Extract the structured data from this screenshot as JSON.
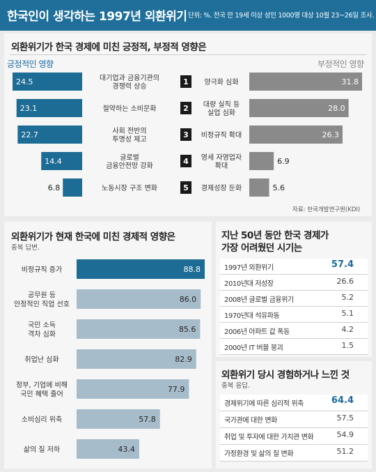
{
  "header": {
    "title": "한국인이 생각하는 1997년 외환위기",
    "note": "단위: %. 전국 만 19세 이상 성인 1000명 대상 10월 23~26일 조사."
  },
  "colors": {
    "header_bg": "#1f6f9a",
    "positive_bar": "#1d6c95",
    "negative_bar": "#8a8a8a",
    "impact_first_bar": "#1d6c95",
    "impact_other_bar": "#a7bccb",
    "highlight_value": "#1a6aa0"
  },
  "section1": {
    "title": "외환위기가 한국 경제에 미친 긍정적, 부정적 영향은",
    "positive_heading": "긍정적인 영향",
    "negative_heading": "부정적인 영향",
    "source": "자료: 한국개발연구원(KDI)"
  },
  "section2": {
    "title": "외환위기가 현재 한국에 미친 경제적 영향은",
    "note": "중복 답변."
  },
  "section3": {
    "title_line1": "지난 50년 동안 한국 경제가",
    "title_line2": "가장 어려웠던 시기는"
  },
  "section4": {
    "title": "외환위기 당시 경험하거나 느낀 것",
    "note": "중복 응답."
  },
  "chart_data": [
    {
      "type": "bar",
      "title": "외환위기가 한국 경제에 미친 긍정적 영향",
      "categories": [
        "대기업과 금융기관의 경쟁력 상승",
        "절약하는 소비문화",
        "사회 전반의 투명성 제고",
        "글로벌 금융안전망 강화",
        "노동시장 구조 변화"
      ],
      "label_lines": [
        [
          "대기업과 금융기관의",
          "경쟁력 상승"
        ],
        [
          "절약하는 소비문화"
        ],
        [
          "사회 전반의",
          "투명성 제고"
        ],
        [
          "글로벌",
          "금융안전망 강화"
        ],
        [
          "노동시장 구조 변화"
        ]
      ],
      "ranks": [
        "1",
        "2",
        "3",
        "4",
        "5"
      ],
      "values": [
        24.5,
        23.1,
        22.7,
        14.4,
        6.8
      ],
      "value_labels": [
        "24.5",
        "23.1",
        "22.7",
        "14.4",
        "6.8"
      ]
    },
    {
      "type": "bar",
      "title": "외환위기가 한국 경제에 미친 부정적 영향",
      "categories": [
        "양극화 심화",
        "대량 실직 등 실업 심화",
        "비정규직 확대",
        "영세 자영업자 확대",
        "경제성장 둔화"
      ],
      "label_lines": [
        [
          "양극화 심화"
        ],
        [
          "대량 실직 등",
          "실업 심화"
        ],
        [
          "비정규직 확대"
        ],
        [
          "영세 자영업자",
          "확대"
        ],
        [
          "경제성장 둔화"
        ]
      ],
      "values": [
        31.8,
        28.0,
        26.3,
        6.9,
        5.6
      ],
      "value_labels": [
        "31.8",
        "28.0",
        "26.3",
        "6.9",
        "5.6"
      ]
    },
    {
      "type": "bar",
      "title": "외환위기가 현재 한국에 미친 경제적 영향은",
      "categories": [
        "비정규직 증가",
        "공무원 등 안정적인 직업 선호",
        "국민 소득 격차 심화",
        "취업난 심화",
        "정부, 기업에 비해 국민 혜택 줄어",
        "소비심리 위축",
        "삶의 질 저하"
      ],
      "label_lines": [
        [
          "비정규직 증가"
        ],
        [
          "공무원 등",
          "안정적인 직업 선호"
        ],
        [
          "국민 소득",
          "격차 심화"
        ],
        [
          "취업난 심화"
        ],
        [
          "정부, 기업에 비해",
          "국민 혜택 줄어"
        ],
        [
          "소비심리 위축"
        ],
        [
          "삶의 질 저하"
        ]
      ],
      "values": [
        88.8,
        86.0,
        85.6,
        82.9,
        77.9,
        57.8,
        43.4
      ],
      "value_labels": [
        "88.8",
        "86.0",
        "85.6",
        "82.9",
        "77.9",
        "57.8",
        "43.4"
      ]
    },
    {
      "type": "table",
      "title": "지난 50년 동안 한국 경제가 가장 어려웠던 시기는",
      "categories": [
        "1997년 외환위기",
        "2010년대 저성장",
        "2008년 글로벌 금융위기",
        "1970년대 석유파동",
        "2006년 아파트 값 폭등",
        "2000년 IT 버블 붕괴"
      ],
      "values": [
        57.4,
        26.6,
        5.2,
        5.1,
        4.2,
        1.5
      ],
      "value_labels": [
        "57.4",
        "26.6",
        "5.2",
        "5.1",
        "4.2",
        "1.5"
      ]
    },
    {
      "type": "table",
      "title": "외환위기 당시 경험하거나 느낀 것",
      "categories": [
        "경제위기에 따른 심리적 위축",
        "국가관에 대한 변화",
        "취업 및 투자에 대한 가치관 변화",
        "가정환경 및 삶의 질 변화"
      ],
      "values": [
        64.4,
        57.5,
        54.9,
        51.2
      ],
      "value_labels": [
        "64.4",
        "57.5",
        "54.9",
        "51.2"
      ]
    }
  ]
}
